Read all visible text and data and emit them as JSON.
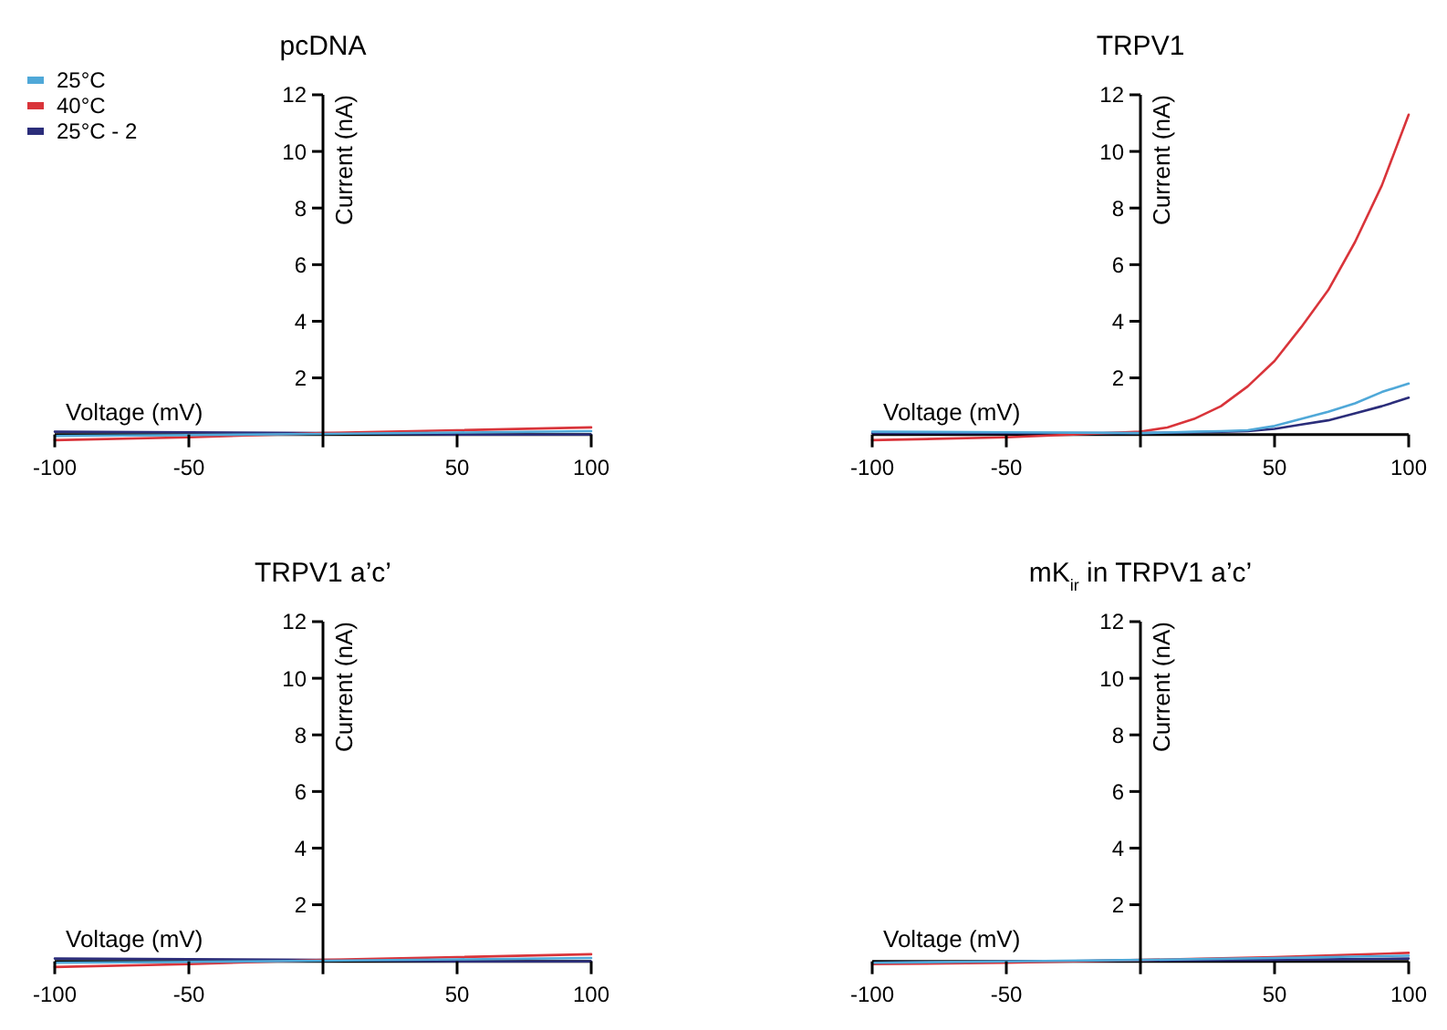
{
  "chart_data": [
    {
      "type": "line",
      "title": "pcDNA",
      "xlabel": "Voltage (mV)",
      "ylabel": "Current (nA)",
      "xlim": [
        -100,
        100
      ],
      "xticks": [
        -100,
        -50,
        50,
        100
      ],
      "ylim": [
        -0.3,
        12
      ],
      "yticks": [
        2,
        4,
        6,
        8,
        10,
        12
      ],
      "legend": "top left",
      "grid": false,
      "marker": "none",
      "line_style": "solid",
      "x": [
        -100,
        -50,
        0,
        50,
        100
      ],
      "series": [
        {
          "name": "25°C",
          "color": "#4fa8d8",
          "values": [
            -0.05,
            -0.02,
            0.02,
            0.07,
            0.12
          ]
        },
        {
          "name": "40°C",
          "color": "#d9343a",
          "values": [
            -0.2,
            -0.1,
            0.05,
            0.15,
            0.25
          ]
        },
        {
          "name": "25°C - 2",
          "color": "#2b2d7a",
          "values": [
            0.1,
            0.08,
            0.05,
            0.0,
            0.0
          ]
        }
      ]
    },
    {
      "type": "line",
      "title": "TRPV1",
      "xlabel": "Voltage (mV)",
      "ylabel": "Current (nA)",
      "xlim": [
        -100,
        100
      ],
      "xticks": [
        -100,
        -50,
        50,
        100
      ],
      "ylim": [
        -0.3,
        12
      ],
      "yticks": [
        2,
        4,
        6,
        8,
        10,
        12
      ],
      "legend": false,
      "grid": false,
      "marker": "none",
      "line_style": "solid",
      "x": [
        -100,
        -50,
        0,
        10,
        20,
        30,
        40,
        50,
        60,
        70,
        80,
        90,
        100
      ],
      "series": [
        {
          "color": "#4fa8d8",
          "values": [
            0.1,
            0.08,
            0.05,
            0.07,
            0.1,
            0.12,
            0.15,
            0.3,
            0.55,
            0.8,
            1.1,
            1.5,
            1.8
          ]
        },
        {
          "color": "#d9343a",
          "values": [
            -0.2,
            -0.1,
            0.1,
            0.25,
            0.55,
            1.0,
            1.7,
            2.6,
            3.8,
            5.1,
            6.8,
            8.8,
            11.3
          ]
        },
        {
          "color": "#2b2d7a",
          "values": [
            0.05,
            0.05,
            0.05,
            0.06,
            0.08,
            0.1,
            0.12,
            0.2,
            0.35,
            0.5,
            0.75,
            1.0,
            1.3
          ]
        }
      ]
    },
    {
      "type": "line",
      "title": "TRPV1 a’c’",
      "xlabel": "Voltage (mV)",
      "ylabel": "Current (nA)",
      "xlim": [
        -100,
        100
      ],
      "xticks": [
        -100,
        -50,
        50,
        100
      ],
      "ylim": [
        -0.3,
        12
      ],
      "yticks": [
        2,
        4,
        6,
        8,
        10,
        12
      ],
      "legend": false,
      "grid": false,
      "marker": "none",
      "line_style": "solid",
      "x": [
        -100,
        -50,
        0,
        50,
        100
      ],
      "series": [
        {
          "color": "#4fa8d8",
          "values": [
            -0.05,
            -0.02,
            0.02,
            0.07,
            0.12
          ]
        },
        {
          "color": "#d9343a",
          "values": [
            -0.2,
            -0.1,
            0.05,
            0.15,
            0.25
          ]
        },
        {
          "color": "#2b2d7a",
          "values": [
            0.1,
            0.08,
            0.05,
            0.0,
            0.0
          ]
        }
      ]
    },
    {
      "type": "line",
      "title": "mK$_{ir}$ in TRPV1 a’c’",
      "xlabel": "Voltage (mV)",
      "ylabel": "Current (nA)",
      "xlim": [
        -100,
        100
      ],
      "xticks": [
        -100,
        -50,
        50,
        100
      ],
      "ylim": [
        -0.3,
        12
      ],
      "yticks": [
        2,
        4,
        6,
        8,
        10,
        12
      ],
      "legend": false,
      "grid": false,
      "marker": "none",
      "line_style": "solid",
      "x": [
        -100,
        -50,
        0,
        50,
        100
      ],
      "series": [
        {
          "color": "#4fa8d8",
          "values": [
            -0.05,
            0,
            0.05,
            0.12,
            0.2
          ]
        },
        {
          "color": "#d9343a",
          "values": [
            -0.1,
            -0.05,
            0.05,
            0.15,
            0.3
          ]
        },
        {
          "color": "#2b2d7a",
          "values": [
            -0.05,
            0,
            0.03,
            0.05,
            0.1
          ]
        }
      ]
    }
  ]
}
